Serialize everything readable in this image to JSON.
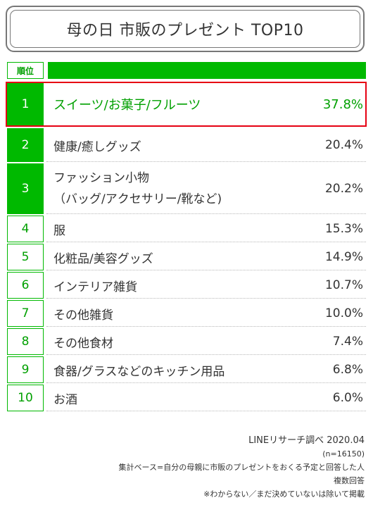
{
  "title": "母の日 市販のプレゼント TOP10",
  "header": {
    "rank_label": "順位"
  },
  "colors": {
    "accent": "#00b900",
    "highlight": "#e60012",
    "text": "#333333"
  },
  "chart_data": {
    "type": "table",
    "title": "母の日 市販のプレゼント TOP10",
    "columns": [
      "順位",
      "",
      ""
    ],
    "rows": [
      {
        "rank": "1",
        "item": "スイーツ/お菓子/フルーツ",
        "percent": "37.8%",
        "value": 37.8,
        "highlighted": true
      },
      {
        "rank": "2",
        "item": "健康/癒しグッズ",
        "percent": "20.4%",
        "value": 20.4
      },
      {
        "rank": "3",
        "item_line1": "ファッション小物",
        "item_line2": "（バッグ/アクセサリー/靴など)",
        "percent": "20.2%",
        "value": 20.2
      },
      {
        "rank": "4",
        "item": "服",
        "percent": "15.3%",
        "value": 15.3
      },
      {
        "rank": "5",
        "item": "化粧品/美容グッズ",
        "percent": "14.9%",
        "value": 14.9
      },
      {
        "rank": "6",
        "item": "インテリア雑貨",
        "percent": "10.7%",
        "value": 10.7
      },
      {
        "rank": "7",
        "item": "その他雑貨",
        "percent": "10.0%",
        "value": 10.0
      },
      {
        "rank": "8",
        "item": "その他食材",
        "percent": "7.4%",
        "value": 7.4
      },
      {
        "rank": "9",
        "item": "食器/グラスなどのキッチン用品",
        "percent": "6.8%",
        "value": 6.8
      },
      {
        "rank": "10",
        "item": "お酒",
        "percent": "6.0%",
        "value": 6.0
      }
    ]
  },
  "footer": {
    "source": "LINEリサーチ調べ 2020.04",
    "sample": "(n=16150)",
    "base": "集計ベース=自分の母親に市販のプレゼントをおくる予定と回答した人",
    "multi": "複数回答",
    "note": "※わからない／まだ決めていないは除いて掲載"
  }
}
